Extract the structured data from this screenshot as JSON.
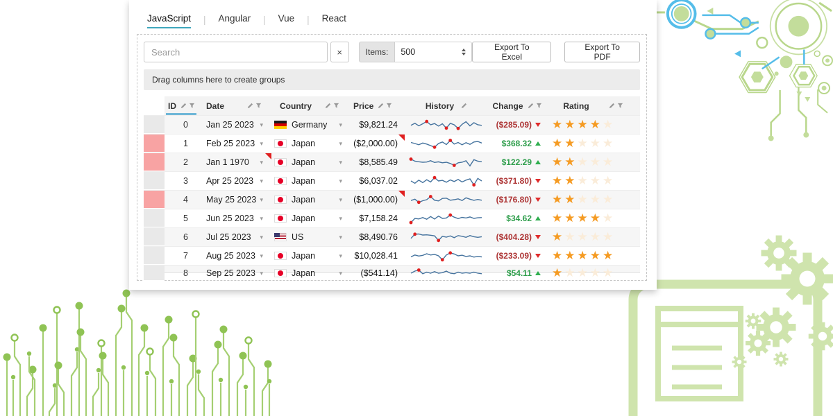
{
  "tabs": [
    {
      "label": "JavaScript",
      "active": true
    },
    {
      "label": "Angular",
      "active": false
    },
    {
      "label": "Vue",
      "active": false
    },
    {
      "label": "React",
      "active": false
    }
  ],
  "toolbar": {
    "search_placeholder": "Search",
    "clear_label": "×",
    "items_label": "Items:",
    "items_value": "500",
    "export_excel_label": "Export To Excel",
    "export_pdf_label": "Export To PDF"
  },
  "group_bar": "Drag columns here to create groups",
  "grid": {
    "columns": [
      {
        "label": "ID",
        "icons": [
          "sort",
          "filter"
        ],
        "active": true
      },
      {
        "label": "Date",
        "icons": [
          "sort",
          "filter"
        ],
        "active": false
      },
      {
        "label": "Country",
        "icons": [
          "sort",
          "filter"
        ],
        "active": false
      },
      {
        "label": "Price",
        "icons": [
          "sort",
          "filter"
        ],
        "active": false
      },
      {
        "label": "History",
        "icons": [
          "sort"
        ],
        "active": false
      },
      {
        "label": "Change",
        "icons": [
          "sort",
          "filter"
        ],
        "active": false
      },
      {
        "label": "Rating",
        "icons": [
          "sort",
          "filter"
        ],
        "active": false
      }
    ],
    "rows": [
      {
        "id": "0",
        "date": "Jan 25 2023",
        "country": "Germany",
        "flag": "de",
        "price": "$9,821.24",
        "change": "($285.09)",
        "direction": "down",
        "rating": 4,
        "status": "gray",
        "date_corner": false,
        "price_corner": false,
        "clipped": false,
        "spark": {
          "points": [
            0.55,
            0.35,
            0.6,
            0.4,
            0.18,
            0.5,
            0.38,
            0.62,
            0.4,
            0.82,
            0.35,
            0.5,
            0.85,
            0.45,
            0.2,
            0.6,
            0.3,
            0.5,
            0.55
          ],
          "dots": [
            4,
            9,
            12
          ]
        }
      },
      {
        "id": "1",
        "date": "Feb 25 2023",
        "country": "Japan",
        "flag": "jp",
        "price": "($2,000.00)",
        "change": "$368.32",
        "direction": "up",
        "rating": 2,
        "status": "pink",
        "date_corner": false,
        "price_corner": true,
        "clipped": false,
        "spark": {
          "points": [
            0.4,
            0.5,
            0.62,
            0.45,
            0.55,
            0.7,
            0.85,
            0.5,
            0.35,
            0.6,
            0.2,
            0.55,
            0.4,
            0.62,
            0.42,
            0.58,
            0.35,
            0.3,
            0.45
          ],
          "dots": [
            6,
            10
          ]
        }
      },
      {
        "id": "2",
        "date": "Jan 1 1970",
        "country": "Japan",
        "flag": "jp",
        "price": "$8,585.49",
        "change": "$122.29",
        "direction": "up",
        "rating": 2,
        "status": "pink",
        "date_corner": true,
        "price_corner": false,
        "clipped": false,
        "spark": {
          "points": [
            0.2,
            0.4,
            0.45,
            0.5,
            0.48,
            0.35,
            0.52,
            0.46,
            0.55,
            0.5,
            0.62,
            0.8,
            0.55,
            0.5,
            0.35,
            0.85,
            0.25,
            0.4,
            0.45
          ],
          "dots": [
            0,
            11
          ]
        }
      },
      {
        "id": "3",
        "date": "Apr 25 2023",
        "country": "Japan",
        "flag": "jp",
        "price": "$6,037.02",
        "change": "($371.80)",
        "direction": "down",
        "rating": 2,
        "status": "gray",
        "date_corner": false,
        "price_corner": false,
        "clipped": false,
        "spark": {
          "points": [
            0.5,
            0.72,
            0.42,
            0.66,
            0.38,
            0.6,
            0.18,
            0.5,
            0.44,
            0.62,
            0.4,
            0.55,
            0.35,
            0.6,
            0.42,
            0.3,
            0.88,
            0.25,
            0.5
          ],
          "dots": [
            6,
            16
          ]
        }
      },
      {
        "id": "4",
        "date": "May 25 2023",
        "country": "Japan",
        "flag": "jp",
        "price": "($1,000.00)",
        "change": "($176.80)",
        "direction": "down",
        "rating": 2,
        "status": "pink",
        "date_corner": false,
        "price_corner": true,
        "clipped": false,
        "spark": {
          "points": [
            0.58,
            0.45,
            0.75,
            0.6,
            0.5,
            0.2,
            0.55,
            0.62,
            0.38,
            0.35,
            0.55,
            0.5,
            0.42,
            0.58,
            0.32,
            0.45,
            0.56,
            0.48,
            0.55
          ],
          "dots": [
            2,
            5
          ]
        }
      },
      {
        "id": "5",
        "date": "Jun 25 2023",
        "country": "Japan",
        "flag": "jp",
        "price": "$7,158.24",
        "change": "$34.62",
        "direction": "up",
        "rating": 4,
        "status": "gray",
        "date_corner": false,
        "price_corner": false,
        "clipped": false,
        "spark": {
          "points": [
            0.9,
            0.5,
            0.55,
            0.42,
            0.58,
            0.32,
            0.56,
            0.28,
            0.5,
            0.46,
            0.18,
            0.38,
            0.52,
            0.4,
            0.46,
            0.36,
            0.5,
            0.44,
            0.42
          ],
          "dots": [
            0,
            10
          ]
        }
      },
      {
        "id": "6",
        "date": "Jul 25 2023",
        "country": "US",
        "flag": "us",
        "price": "$8,490.76",
        "change": "($404.28)",
        "direction": "down",
        "rating": 1,
        "status": "gray",
        "date_corner": false,
        "price_corner": false,
        "clipped": false,
        "spark": {
          "points": [
            0.62,
            0.22,
            0.2,
            0.3,
            0.28,
            0.32,
            0.38,
            0.82,
            0.42,
            0.5,
            0.38,
            0.55,
            0.35,
            0.42,
            0.52,
            0.35,
            0.46,
            0.52,
            0.46
          ],
          "dots": [
            1,
            7
          ]
        }
      },
      {
        "id": "7",
        "date": "Aug 25 2023",
        "country": "Japan",
        "flag": "jp",
        "price": "$10,028.41",
        "change": "($233.09)",
        "direction": "down",
        "rating": 5,
        "status": "gray",
        "date_corner": false,
        "price_corner": false,
        "clipped": false,
        "spark": {
          "points": [
            0.6,
            0.42,
            0.52,
            0.45,
            0.3,
            0.42,
            0.36,
            0.5,
            0.88,
            0.42,
            0.22,
            0.32,
            0.5,
            0.44,
            0.56,
            0.5,
            0.62,
            0.55,
            0.6
          ],
          "dots": [
            8,
            10
          ]
        }
      },
      {
        "id": "8",
        "date": "Sep 25 2023",
        "country": "Japan",
        "flag": "jp",
        "price": "($541.14)",
        "change": "$54.11",
        "direction": "up",
        "rating": 1,
        "status": "gray",
        "date_corner": false,
        "price_corner": false,
        "clipped": true,
        "spark": {
          "points": [
            0.5,
            0.3,
            0.2,
            0.55,
            0.4,
            0.5,
            0.35,
            0.5,
            0.45,
            0.3,
            0.5,
            0.55,
            0.4,
            0.5,
            0.45,
            0.5,
            0.4,
            0.5,
            0.55
          ],
          "dots": [
            2
          ]
        }
      }
    ]
  },
  "colors": {
    "tab_accent": "#3fa7bd",
    "active_column_underline": "#6fb7d8",
    "positive": "#2f9e4c",
    "negative": "#ad3434",
    "star_filled": "#f59b23",
    "star_empty": "#faecd9",
    "sparkline": "#45739e",
    "spark_dot": "#e02020",
    "row_flag_pink": "#f8a3a3",
    "decor_green": "#b9d78c",
    "decor_blue": "#55bde9"
  }
}
